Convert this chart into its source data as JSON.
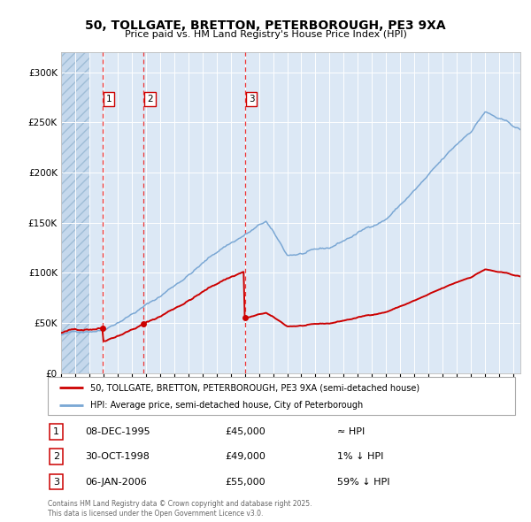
{
  "title": "50, TOLLGATE, BRETTON, PETERBOROUGH, PE3 9XA",
  "subtitle": "Price paid vs. HM Land Registry's House Price Index (HPI)",
  "legend_line1": "50, TOLLGATE, BRETTON, PETERBOROUGH, PE3 9XA (semi-detached house)",
  "legend_line2": "HPI: Average price, semi-detached house, City of Peterborough",
  "footer": "Contains HM Land Registry data © Crown copyright and database right 2025.\nThis data is licensed under the Open Government Licence v3.0.",
  "purchases": [
    {
      "label": "1",
      "date": "08-DEC-1995",
      "price": 45000,
      "note": "≈ HPI",
      "x_year": 1995.93
    },
    {
      "label": "2",
      "date": "30-OCT-1998",
      "price": 49000,
      "note": "1% ↓ HPI",
      "x_year": 1998.83
    },
    {
      "label": "3",
      "date": "06-JAN-2006",
      "price": 55000,
      "note": "59% ↓ HPI",
      "x_year": 2006.02
    }
  ],
  "hpi_color": "#7aa7d4",
  "price_color": "#cc0000",
  "vline_color": "#ee3333",
  "marker_color": "#cc0000",
  "background_plot": "#dce8f5",
  "grid_color": "#ffffff",
  "ylim": [
    0,
    320000
  ],
  "xlim_start": 1993.0,
  "xlim_end": 2025.5,
  "purchase_cutoff_year": 1995.0,
  "yticks": [
    0,
    50000,
    100000,
    150000,
    200000,
    250000,
    300000
  ],
  "ytick_labels": [
    "£0",
    "£50K",
    "£100K",
    "£150K",
    "£200K",
    "£250K",
    "£300K"
  ]
}
